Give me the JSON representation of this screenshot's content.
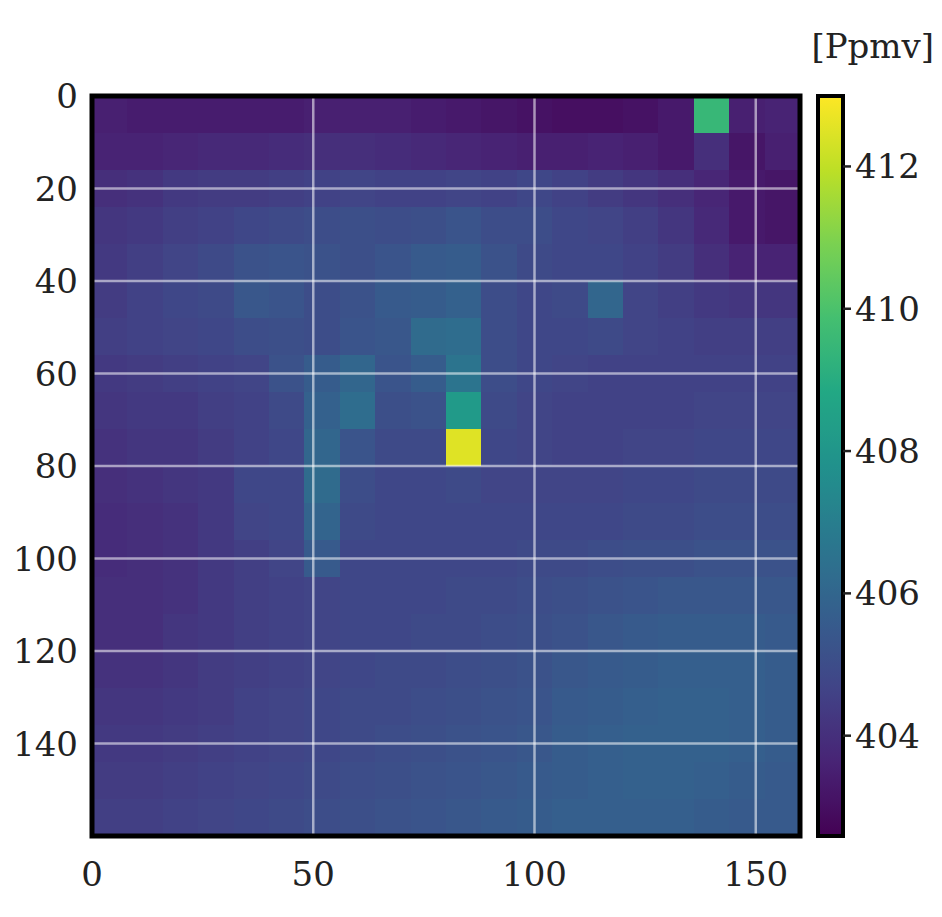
{
  "chart_data": {
    "type": "heatmap",
    "colorbar_label": "[Ppmv]",
    "color": "viridis",
    "grid": true,
    "xlim": [
      0,
      160
    ],
    "ylim": [
      0,
      160
    ],
    "xticks": [
      0,
      50,
      100,
      150
    ],
    "yticks": [
      0,
      20,
      40,
      60,
      80,
      100,
      120,
      140
    ],
    "x": [
      4,
      12,
      20,
      28,
      36,
      44,
      52,
      60,
      68,
      76,
      84,
      92,
      100,
      108,
      116,
      124,
      132,
      140,
      148,
      156
    ],
    "y": [
      4,
      12,
      20,
      28,
      36,
      44,
      52,
      60,
      68,
      76,
      84,
      92,
      100,
      108,
      116,
      124,
      132,
      140,
      148,
      156
    ],
    "colorbar": {
      "range": [
        402.59,
        412.99
      ],
      "ticks": [
        404,
        406,
        408,
        410,
        412
      ]
    },
    "values": [
      [
        403.5,
        403.4,
        403.4,
        403.4,
        403.4,
        403.4,
        403.5,
        403.5,
        403.5,
        403.4,
        403.3,
        403.2,
        403.1,
        403.0,
        403.0,
        403.1,
        403.3,
        409.5,
        403.5,
        403.6
      ],
      [
        403.6,
        403.6,
        403.7,
        403.8,
        403.8,
        403.9,
        404.0,
        404.0,
        403.9,
        403.8,
        403.7,
        403.6,
        403.5,
        403.5,
        403.6,
        403.5,
        403.3,
        404.0,
        403.2,
        403.5
      ],
      [
        404.0,
        404.1,
        404.3,
        404.4,
        404.4,
        404.5,
        404.6,
        404.7,
        404.6,
        404.6,
        404.7,
        404.6,
        404.8,
        404.6,
        404.4,
        404.2,
        404.0,
        403.7,
        403.3,
        403.2
      ],
      [
        404.2,
        404.3,
        404.5,
        404.6,
        404.8,
        404.9,
        405.0,
        405.1,
        405.0,
        405.1,
        405.3,
        405.0,
        405.0,
        404.8,
        404.7,
        404.5,
        404.2,
        403.8,
        403.3,
        403.2
      ],
      [
        404.3,
        404.5,
        404.7,
        404.9,
        405.2,
        405.3,
        405.2,
        405.1,
        405.3,
        405.5,
        405.6,
        405.2,
        404.9,
        404.8,
        404.8,
        404.6,
        404.4,
        404.0,
        403.6,
        403.6
      ],
      [
        404.4,
        404.6,
        404.8,
        404.9,
        405.4,
        405.3,
        405.0,
        405.2,
        405.5,
        405.6,
        405.8,
        405.0,
        404.8,
        404.9,
        406.0,
        404.7,
        404.5,
        404.3,
        404.2,
        404.2
      ],
      [
        404.5,
        404.6,
        404.7,
        404.8,
        405.0,
        405.1,
        405.0,
        405.3,
        405.4,
        406.2,
        406.3,
        405.0,
        404.8,
        404.8,
        404.9,
        404.7,
        404.6,
        404.5,
        404.5,
        404.5
      ],
      [
        404.3,
        404.4,
        404.5,
        404.6,
        404.7,
        405.2,
        405.6,
        406.0,
        405.3,
        405.6,
        406.6,
        405.0,
        404.8,
        404.7,
        404.6,
        404.6,
        404.6,
        404.6,
        404.6,
        404.6
      ],
      [
        404.2,
        404.3,
        404.3,
        404.5,
        404.6,
        404.9,
        405.8,
        406.3,
        405.1,
        405.2,
        408.2,
        404.9,
        404.7,
        404.6,
        404.6,
        404.6,
        404.6,
        404.7,
        404.7,
        404.7
      ],
      [
        404.1,
        404.2,
        404.2,
        404.4,
        404.6,
        404.8,
        406.0,
        405.3,
        404.9,
        404.9,
        412.5,
        404.8,
        404.7,
        404.6,
        404.6,
        404.7,
        404.7,
        404.8,
        404.8,
        404.8
      ],
      [
        404.0,
        404.1,
        404.2,
        404.3,
        404.8,
        404.8,
        406.2,
        405.0,
        404.8,
        404.8,
        404.9,
        404.7,
        404.7,
        404.7,
        404.7,
        404.8,
        404.8,
        404.9,
        404.9,
        404.9
      ],
      [
        403.9,
        404.0,
        404.1,
        404.3,
        404.7,
        404.8,
        405.9,
        404.9,
        404.8,
        404.8,
        404.8,
        404.8,
        404.8,
        404.8,
        404.8,
        404.9,
        404.9,
        405.0,
        405.0,
        405.0
      ],
      [
        403.9,
        404.0,
        404.1,
        404.3,
        404.5,
        404.7,
        405.5,
        404.8,
        404.8,
        404.8,
        404.8,
        404.8,
        404.9,
        404.9,
        405.0,
        405.1,
        405.1,
        405.2,
        405.2,
        405.2
      ],
      [
        404.0,
        404.0,
        404.1,
        404.3,
        404.5,
        404.6,
        404.7,
        404.8,
        404.8,
        404.8,
        404.9,
        404.9,
        405.0,
        405.1,
        405.2,
        405.3,
        405.4,
        405.4,
        405.4,
        405.4
      ],
      [
        404.0,
        404.0,
        404.2,
        404.3,
        404.5,
        404.6,
        404.7,
        404.8,
        404.8,
        404.9,
        404.9,
        405.0,
        405.1,
        405.2,
        405.4,
        405.5,
        405.6,
        405.6,
        405.6,
        405.5
      ],
      [
        404.1,
        404.1,
        404.2,
        404.4,
        404.5,
        404.6,
        404.7,
        404.8,
        404.9,
        404.9,
        405.0,
        405.1,
        405.2,
        405.4,
        405.5,
        405.6,
        405.7,
        405.7,
        405.7,
        405.6
      ],
      [
        404.2,
        404.2,
        404.3,
        404.4,
        404.6,
        404.7,
        404.8,
        404.9,
        404.9,
        405.0,
        405.1,
        405.2,
        405.3,
        405.5,
        405.6,
        405.7,
        405.8,
        405.8,
        405.7,
        405.6
      ],
      [
        404.3,
        404.3,
        404.4,
        404.5,
        404.6,
        404.7,
        404.8,
        404.9,
        405.0,
        405.1,
        405.2,
        405.3,
        405.4,
        405.6,
        405.7,
        405.8,
        405.8,
        405.8,
        405.7,
        405.6
      ],
      [
        404.4,
        404.4,
        404.5,
        404.6,
        404.7,
        404.8,
        404.9,
        405.0,
        405.1,
        405.2,
        405.3,
        405.4,
        405.5,
        405.6,
        405.7,
        405.8,
        405.8,
        405.7,
        405.6,
        405.5
      ],
      [
        404.5,
        404.5,
        404.6,
        404.7,
        404.8,
        404.9,
        405.0,
        405.1,
        405.2,
        405.3,
        405.4,
        405.5,
        405.6,
        405.7,
        405.7,
        405.7,
        405.7,
        405.6,
        405.5,
        405.5
      ]
    ]
  }
}
